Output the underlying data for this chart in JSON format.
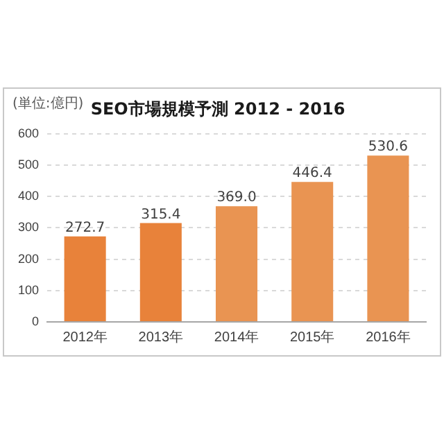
{
  "chart_data": {
    "type": "bar",
    "title": "SEO市場規模予測 2012 - 2016",
    "ylabel": "(単位:億円)",
    "categories": [
      "2012年",
      "2013年",
      "2014年",
      "2015年",
      "2016年"
    ],
    "values": [
      272.7,
      315.4,
      369.0,
      446.4,
      530.6
    ],
    "colors": [
      "#e8823a",
      "#e8823a",
      "#e99452",
      "#e99452",
      "#e99452"
    ],
    "value_labels": [
      "272.7",
      "315.4",
      "369.0",
      "446.4",
      "530.6"
    ],
    "ylim": [
      0,
      600
    ],
    "yticks": [
      0,
      100,
      200,
      300,
      400,
      500,
      600
    ],
    "grid": "y",
    "legend": false
  }
}
